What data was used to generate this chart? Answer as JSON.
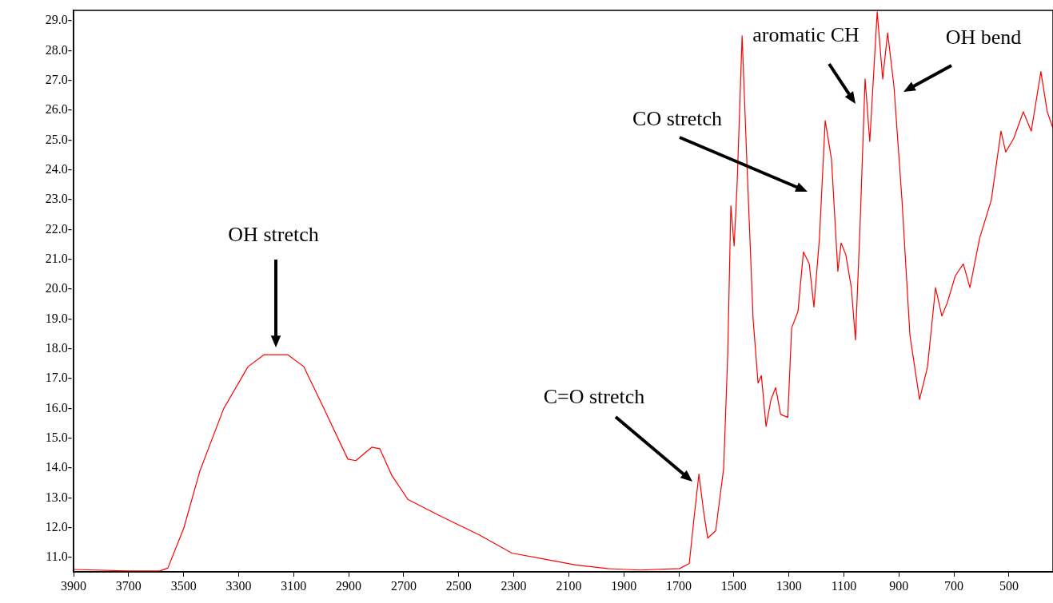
{
  "chart_data": {
    "type": "line",
    "xlim": [
      3900,
      340
    ],
    "ylim": [
      10.52,
      29.35
    ],
    "xticks": [
      3900,
      3700,
      3500,
      3300,
      3100,
      2900,
      2700,
      2500,
      2300,
      2100,
      1900,
      1700,
      1500,
      1300,
      1100,
      900,
      700,
      500
    ],
    "yticks": [
      {
        "value": 11,
        "label": "11.0-"
      },
      {
        "value": 12,
        "label": "12.0-"
      },
      {
        "value": 13,
        "label": "13.0-"
      },
      {
        "value": 14,
        "label": "14.0-"
      },
      {
        "value": 15,
        "label": "15.0-"
      },
      {
        "value": 16,
        "label": "16.0-"
      },
      {
        "value": 17,
        "label": "17.0-"
      },
      {
        "value": 18,
        "label": "18.0-"
      },
      {
        "value": 19,
        "label": "19.0-"
      },
      {
        "value": 20,
        "label": "20.0-"
      },
      {
        "value": 21,
        "label": "21.0-"
      },
      {
        "value": 22,
        "label": "22.0-"
      },
      {
        "value": 23,
        "label": "23.0-"
      },
      {
        "value": 24,
        "label": "24.0-"
      },
      {
        "value": 25,
        "label": "25.0-"
      },
      {
        "value": 26,
        "label": "26.0-"
      },
      {
        "value": 27,
        "label": "27.0-"
      },
      {
        "value": 28,
        "label": "28.0-"
      },
      {
        "value": 29,
        "label": "29.0-"
      }
    ],
    "grid": false,
    "legend": false,
    "marker": "none",
    "line_style": "solid",
    "x": [
      3900,
      3702,
      3586,
      3557,
      3499,
      3441,
      3354,
      3266,
      3208,
      3121,
      3063,
      2990,
      2903,
      2874,
      2816,
      2787,
      2743,
      2685,
      2569,
      2424,
      2307,
      2191,
      2075,
      1959,
      1842,
      1697,
      1662,
      1645,
      1627,
      1610,
      1595,
      1566,
      1537,
      1522,
      1511,
      1499,
      1488,
      1470,
      1453,
      1430,
      1412,
      1400,
      1383,
      1365,
      1348,
      1330,
      1304,
      1290,
      1267,
      1247,
      1226,
      1209,
      1189,
      1168,
      1145,
      1122,
      1110,
      1093,
      1073,
      1058,
      1041,
      1023,
      1006,
      979,
      959,
      941,
      918,
      889,
      860,
      825,
      796,
      767,
      744,
      724,
      695,
      666,
      642,
      607,
      564,
      529,
      512,
      483,
      448,
      419,
      384,
      361,
      340
    ],
    "series": [
      {
        "color": "#ff0000",
        "values": [
          10.6,
          10.55,
          10.55,
          10.65,
          12.0,
          13.9,
          16.0,
          17.4,
          17.8,
          17.8,
          17.4,
          16.0,
          14.3,
          14.25,
          14.7,
          14.65,
          13.75,
          12.95,
          12.4,
          11.75,
          11.15,
          10.95,
          10.75,
          10.63,
          10.58,
          10.63,
          10.8,
          12.3,
          13.8,
          12.55,
          11.65,
          11.9,
          14.0,
          17.9,
          22.8,
          21.45,
          23.55,
          28.5,
          24.35,
          19.0,
          16.85,
          17.1,
          15.4,
          16.3,
          16.7,
          15.8,
          15.7,
          18.7,
          19.25,
          21.25,
          20.85,
          19.4,
          21.7,
          25.65,
          24.35,
          20.6,
          21.55,
          21.15,
          20.05,
          18.3,
          22.2,
          27.05,
          24.95,
          29.3,
          27.05,
          28.6,
          26.8,
          23.0,
          18.45,
          16.3,
          17.4,
          20.05,
          19.1,
          19.55,
          20.45,
          20.85,
          20.05,
          21.7,
          23.0,
          25.3,
          24.6,
          25.05,
          25.95,
          25.3,
          27.3,
          25.95,
          25.4
        ]
      }
    ],
    "annotations": [
      "OH stretch",
      "C=O stretch",
      "CO stretch",
      "aromatic CH",
      "OH bend"
    ]
  }
}
